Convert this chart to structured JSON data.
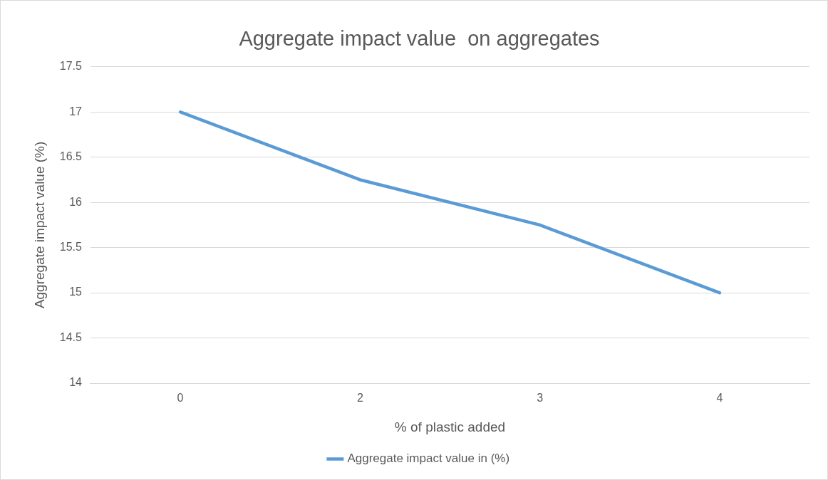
{
  "chart_data": {
    "type": "line",
    "title": "Aggregate impact value  on aggregates",
    "xlabel": "% of plastic added",
    "ylabel": "Aggregate impact value (%)",
    "categories": [
      "0",
      "2",
      "3",
      "4"
    ],
    "series": [
      {
        "name": "Aggregate impact value in (%)",
        "color": "#5b9bd5",
        "values": [
          17,
          16.25,
          15.75,
          15
        ]
      }
    ],
    "ylim": [
      14,
      17.5
    ],
    "yticks": [
      14,
      14.5,
      15,
      15.5,
      16,
      16.5,
      17,
      17.5
    ],
    "grid": "y",
    "legend": "bottom"
  }
}
